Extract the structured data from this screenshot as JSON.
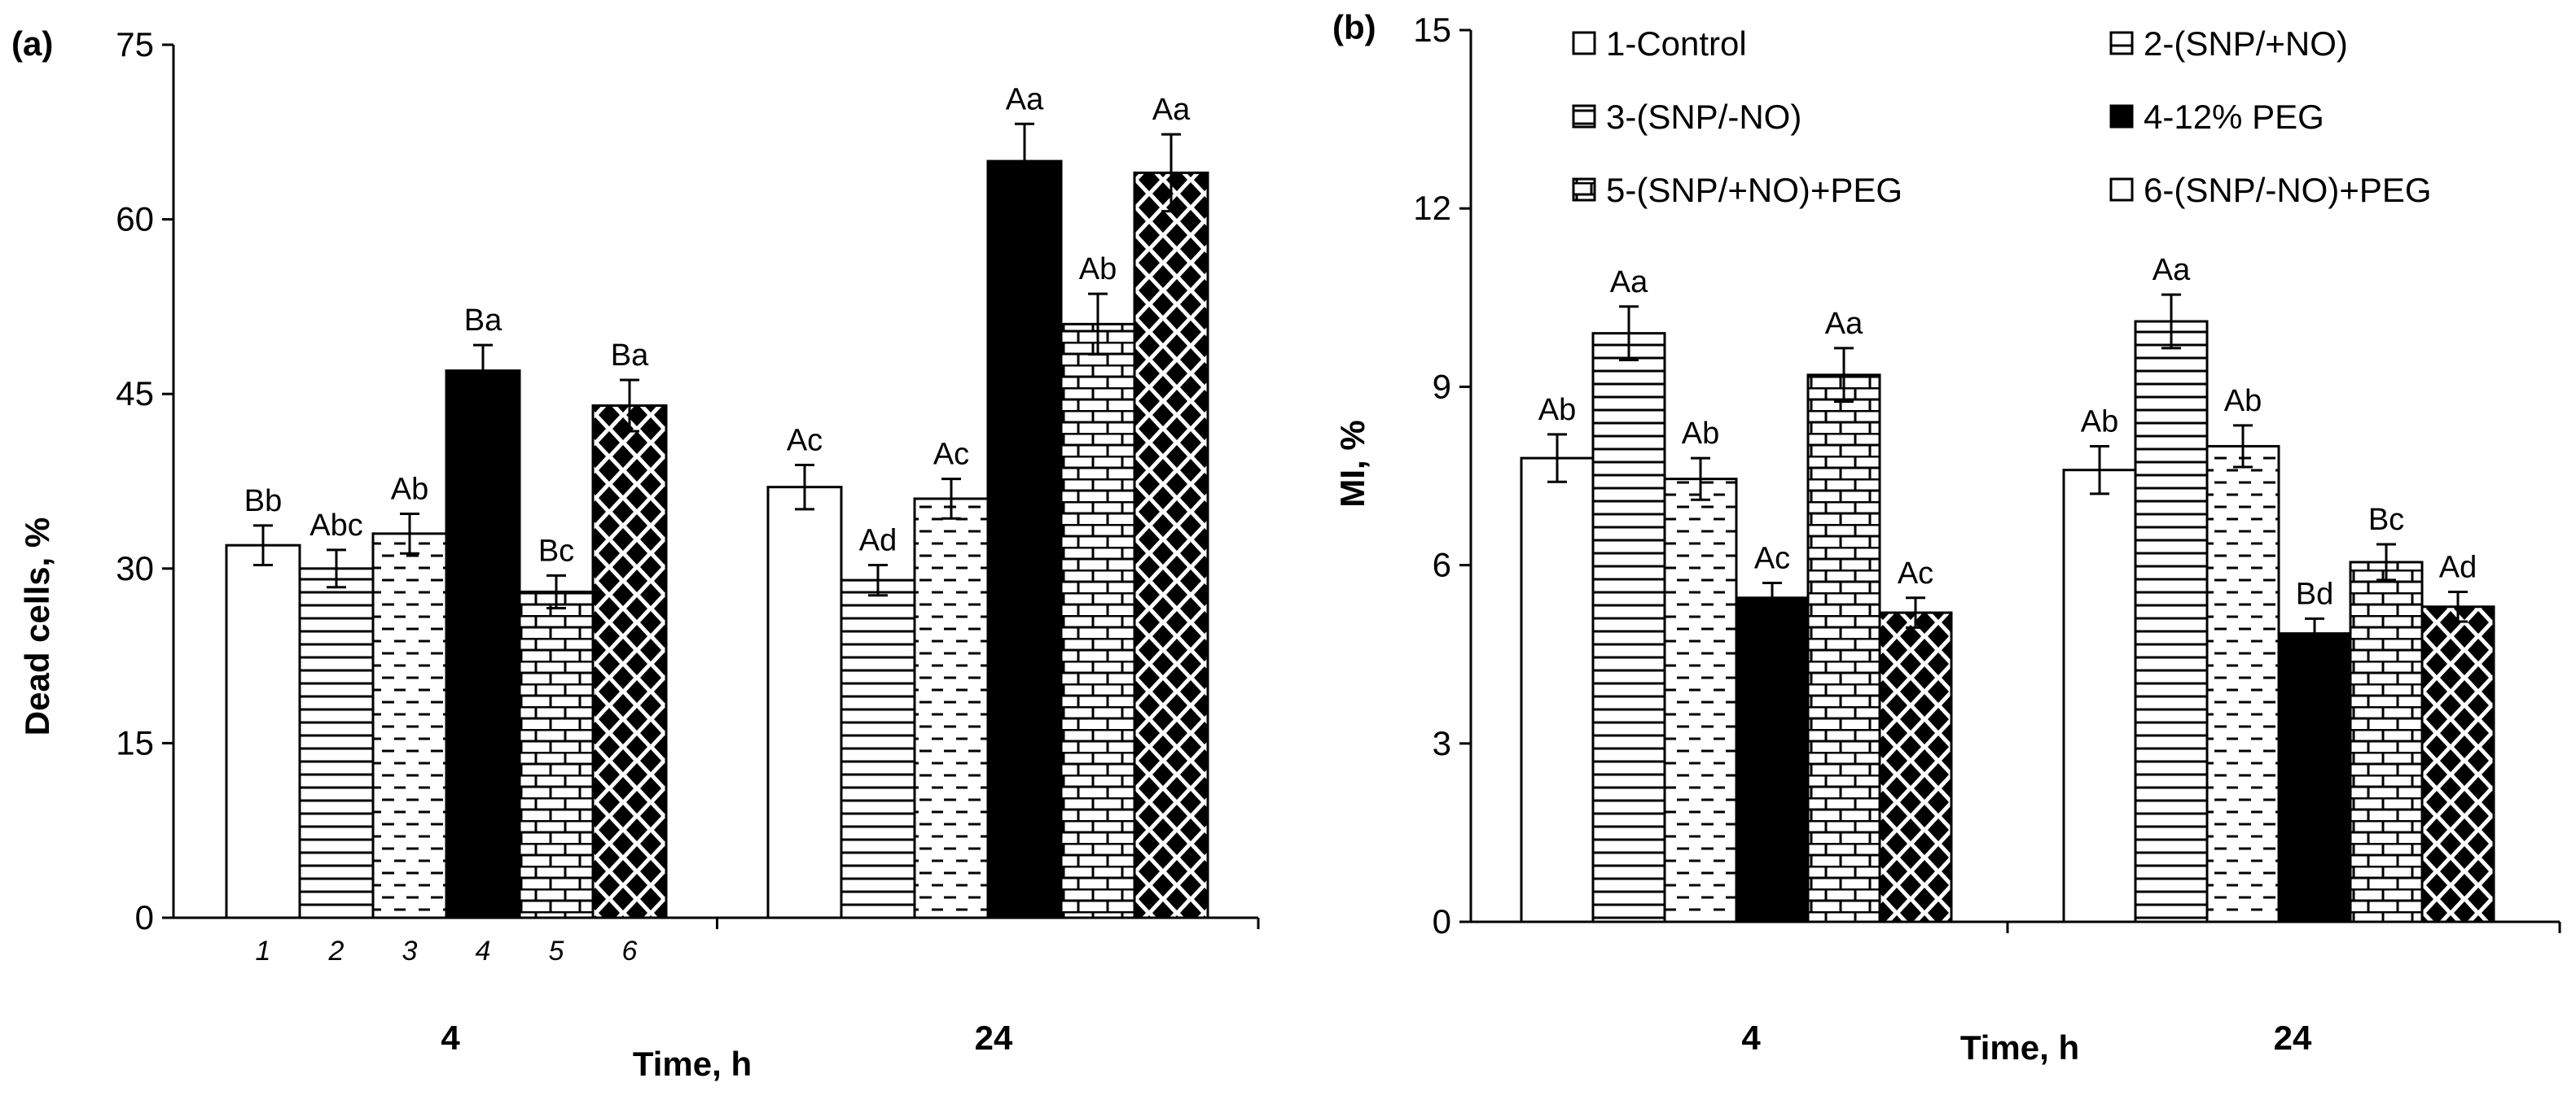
{
  "colors": {
    "ink": "#000000",
    "paper": "#ffffff"
  },
  "legend": [
    {
      "id": 1,
      "label": "1-Control",
      "pattern": "white"
    },
    {
      "id": 2,
      "label": "2-(SNP/+NO)",
      "pattern": "hlines"
    },
    {
      "id": 3,
      "label": "3-(SNP/-NO)",
      "pattern": "dashes"
    },
    {
      "id": 4,
      "label": "4-12% PEG",
      "pattern": "black"
    },
    {
      "id": 5,
      "label": "5-(SNP/+NO)+PEG",
      "pattern": "bricks"
    },
    {
      "id": 6,
      "label": "6-(SNP/-NO)+PEG",
      "pattern": "diamonds"
    }
  ],
  "chart_data": [
    {
      "type": "bar",
      "panel_label": "(a)",
      "title": "",
      "xlabel": "Time, h",
      "ylabel": "Dead cells, %",
      "ylim": [
        0,
        75
      ],
      "yticks": [
        0,
        15,
        30,
        45,
        60,
        75
      ],
      "categories": [
        "4",
        "24"
      ],
      "bar_index_labels": [
        "1",
        "2",
        "3",
        "4",
        "5",
        "6"
      ],
      "series": [
        {
          "name": "1-Control",
          "pattern": "white",
          "values": [
            32,
            37
          ],
          "errors": [
            1.7,
            1.9
          ],
          "letters": [
            "Bb",
            "Ac"
          ]
        },
        {
          "name": "2-(SNP/+NO)",
          "pattern": "hlines",
          "values": [
            30,
            29
          ],
          "errors": [
            1.6,
            1.3
          ],
          "letters": [
            "Abc",
            "Ad"
          ]
        },
        {
          "name": "3-(SNP/-NO)",
          "pattern": "dashes",
          "values": [
            33,
            36
          ],
          "errors": [
            1.7,
            1.7
          ],
          "letters": [
            "Ab",
            "Ac"
          ]
        },
        {
          "name": "4-12% PEG",
          "pattern": "black",
          "values": [
            47,
            65
          ],
          "errors": [
            2.2,
            3.2
          ],
          "letters": [
            "Ba",
            "Aa"
          ]
        },
        {
          "name": "5-(SNP/+NO)+PEG",
          "pattern": "bricks",
          "values": [
            28,
            51
          ],
          "errors": [
            1.4,
            2.6
          ],
          "letters": [
            "Bc",
            "Ab"
          ]
        },
        {
          "name": "6-(SNP/-NO)+PEG",
          "pattern": "diamonds",
          "values": [
            44,
            64
          ],
          "errors": [
            2.2,
            3.3
          ],
          "letters": [
            "Ba",
            "Aa"
          ]
        }
      ]
    },
    {
      "type": "bar",
      "panel_label": "(b)",
      "title": "",
      "xlabel": "Time, h",
      "ylabel": "MI, %",
      "ylim": [
        0,
        15
      ],
      "yticks": [
        0,
        3,
        6,
        9,
        12,
        15
      ],
      "categories": [
        "4",
        "24"
      ],
      "legend_position": "top",
      "series": [
        {
          "name": "1-Control",
          "pattern": "white",
          "values": [
            7.8,
            7.6
          ],
          "errors": [
            0.4,
            0.4
          ],
          "letters": [
            "Ab",
            "Ab"
          ]
        },
        {
          "name": "2-(SNP/+NO)",
          "pattern": "hlines",
          "values": [
            9.9,
            10.1
          ],
          "errors": [
            0.45,
            0.45
          ],
          "letters": [
            "Aa",
            "Aa"
          ]
        },
        {
          "name": "3-(SNP/-NO)",
          "pattern": "dashes",
          "values": [
            7.45,
            8.0
          ],
          "errors": [
            0.35,
            0.35
          ],
          "letters": [
            "Ab",
            "Ab"
          ]
        },
        {
          "name": "4-12% PEG",
          "pattern": "black",
          "values": [
            5.45,
            4.85
          ],
          "errors": [
            0.25,
            0.25
          ],
          "letters": [
            "Ac",
            "Bd"
          ]
        },
        {
          "name": "5-(SNP/+NO)+PEG",
          "pattern": "bricks",
          "values": [
            9.2,
            6.05
          ],
          "errors": [
            0.45,
            0.3
          ],
          "letters": [
            "Aa",
            "Bc"
          ]
        },
        {
          "name": "6-(SNP/-NO)+PEG",
          "pattern": "diamonds",
          "values": [
            5.2,
            5.3
          ],
          "errors": [
            0.25,
            0.25
          ],
          "letters": [
            "Ac",
            "Ad"
          ]
        }
      ]
    }
  ]
}
